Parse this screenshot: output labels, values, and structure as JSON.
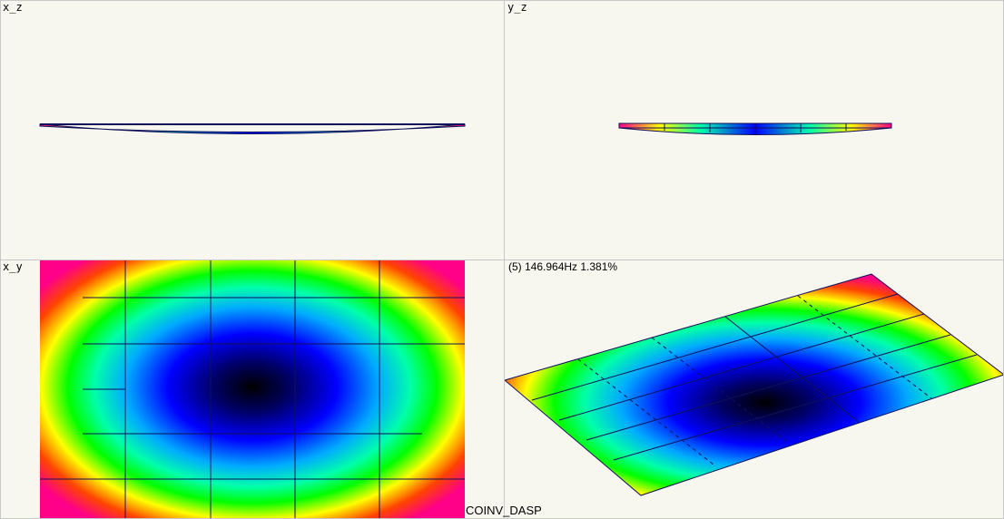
{
  "viewports": {
    "xz": {
      "label": "x_z"
    },
    "yz": {
      "label": "y_z"
    },
    "xy": {
      "label": "x_y"
    },
    "iso": {
      "mode_text": "(5) 146.964Hz 1.381%"
    }
  },
  "app_name": "COINV_DASP",
  "colors": {
    "background": "#f7f6ef",
    "grid": "#10105a",
    "colormap": [
      "#000000",
      "#0000ff",
      "#00aaff",
      "#00ffaa",
      "#00ff00",
      "#ffff00",
      "#ff8800",
      "#ff0000",
      "#ff0088"
    ]
  }
}
